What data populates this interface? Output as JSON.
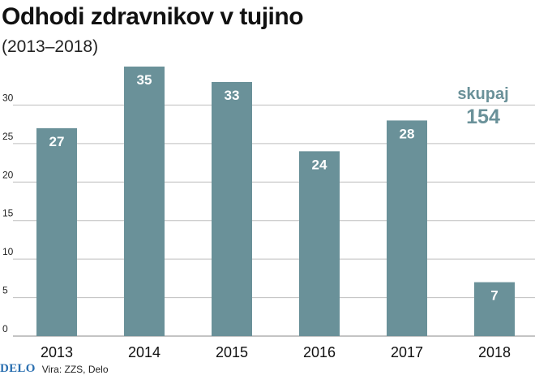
{
  "title": "Odhodi zdravnikov v tujino",
  "subtitle": "(2013–2018)",
  "total": {
    "label": "skupaj",
    "value": "154"
  },
  "footer": {
    "logo": "DELO",
    "source": "Vira: ZZS, Delo"
  },
  "colors": {
    "bar": "#6a9199",
    "bar_label": "#ffffff",
    "grid": "#bfbfbf",
    "total": "#6a9199"
  },
  "chart_data": {
    "type": "bar",
    "title": "Odhodi zdravnikov v tujino",
    "subtitle": "(2013–2018)",
    "categories": [
      "2013",
      "2014",
      "2015",
      "2016",
      "2017",
      "2018"
    ],
    "values": [
      27,
      35,
      33,
      24,
      28,
      7
    ],
    "value_labels": [
      "27",
      "35",
      "33",
      "24",
      "28",
      "7"
    ],
    "yticks": [
      0,
      5,
      10,
      15,
      20,
      25,
      30
    ],
    "ytick_labels": [
      "0",
      "5",
      "10",
      "15",
      "20",
      "25",
      "30"
    ],
    "ylim": [
      0,
      35
    ],
    "grid": true,
    "legend": "none",
    "xlabel": "",
    "ylabel": ""
  }
}
